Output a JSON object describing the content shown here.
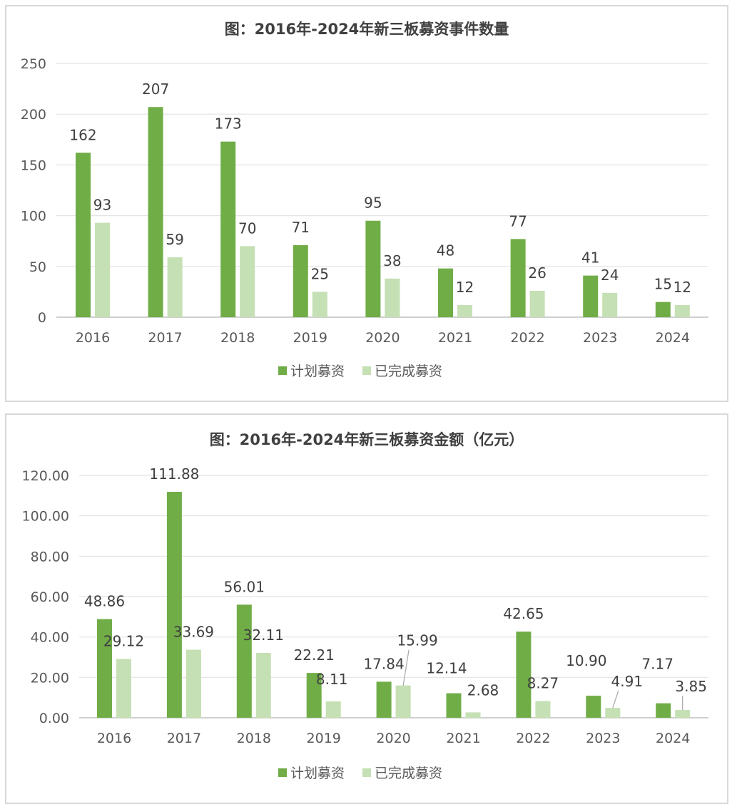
{
  "chart_data": [
    {
      "type": "bar",
      "title": "图：2016年-2024年新三板募资事件数量",
      "categories": [
        "2016",
        "2017",
        "2018",
        "2019",
        "2020",
        "2021",
        "2022",
        "2023",
        "2024"
      ],
      "series": [
        {
          "name": "计划募资",
          "color": "#70ad47",
          "values": [
            162,
            207,
            173,
            71,
            95,
            48,
            77,
            41,
            15
          ],
          "labels": [
            "162",
            "207",
            "173",
            "71",
            "95",
            "48",
            "77",
            "41",
            "15"
          ]
        },
        {
          "name": "已完成募资",
          "color": "#c5e0b4",
          "values": [
            93,
            59,
            70,
            25,
            38,
            12,
            26,
            24,
            12
          ],
          "labels": [
            "93",
            "59",
            "70",
            "25",
            "38",
            "12",
            "26",
            "24",
            "12"
          ]
        }
      ],
      "ylim": [
        0,
        250
      ],
      "yticks": [
        "0",
        "50",
        "100",
        "150",
        "200",
        "250"
      ],
      "grid": true,
      "legend": "bottom"
    },
    {
      "type": "bar",
      "title": "图：2016年-2024年新三板募资金额（亿元）",
      "categories": [
        "2016",
        "2017",
        "2018",
        "2019",
        "2020",
        "2021",
        "2022",
        "2023",
        "2024"
      ],
      "series": [
        {
          "name": "计划募资",
          "color": "#70ad47",
          "values": [
            48.86,
            111.88,
            56.01,
            22.21,
            17.84,
            12.14,
            42.65,
            10.9,
            7.17
          ],
          "labels": [
            "48.86",
            "111.88",
            "56.01",
            "22.21",
            "17.84",
            "12.14",
            "42.65",
            "10.90",
            "7.17"
          ]
        },
        {
          "name": "已完成募资",
          "color": "#c5e0b4",
          "values": [
            29.12,
            33.69,
            32.11,
            8.11,
            15.99,
            2.68,
            8.27,
            4.91,
            3.85
          ],
          "labels": [
            "29.12",
            "33.69",
            "32.11",
            "8.11",
            "15.99",
            "2.68",
            "8.27",
            "4.91",
            "3.85"
          ]
        }
      ],
      "ylim": [
        0,
        120
      ],
      "yticks": [
        "0.00",
        "20.00",
        "40.00",
        "60.00",
        "80.00",
        "100.00",
        "120.00"
      ],
      "grid": true,
      "legend": "bottom"
    }
  ]
}
